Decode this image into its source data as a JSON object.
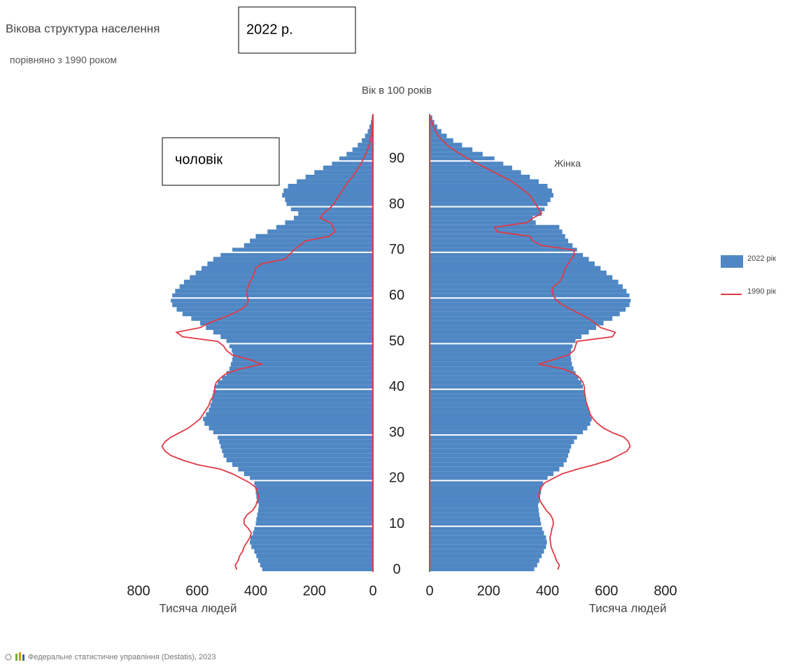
{
  "chart_data": {
    "type": "pyramid",
    "title": "Вікова структура населення",
    "title_box": "2022 р.",
    "subtitle": "порівняно з 1990 роком",
    "age_label": "Вік в 100 років",
    "xlabel": "Тисяча людей",
    "source": "Федеральне статистичне управління (Destatis), 2023",
    "xlim": [
      0,
      800
    ],
    "xticks": [
      0,
      200,
      400,
      600,
      800
    ],
    "ylim": [
      0,
      100
    ],
    "yticks": [
      0,
      10,
      20,
      30,
      40,
      50,
      60,
      70,
      80,
      90
    ],
    "grid": true,
    "panels": [
      {
        "label": "чоловік",
        "side": "left"
      },
      {
        "label": "Жінка",
        "side": "right"
      }
    ],
    "ages": [
      0,
      1,
      2,
      3,
      4,
      5,
      6,
      7,
      8,
      9,
      10,
      11,
      12,
      13,
      14,
      15,
      16,
      17,
      18,
      19,
      20,
      21,
      22,
      23,
      24,
      25,
      26,
      27,
      28,
      29,
      30,
      31,
      32,
      33,
      34,
      35,
      36,
      37,
      38,
      39,
      40,
      41,
      42,
      43,
      44,
      45,
      46,
      47,
      48,
      49,
      50,
      51,
      52,
      53,
      54,
      55,
      56,
      57,
      58,
      59,
      60,
      61,
      62,
      63,
      64,
      65,
      66,
      67,
      68,
      69,
      70,
      71,
      72,
      73,
      74,
      75,
      76,
      77,
      78,
      79,
      80,
      81,
      82,
      83,
      84,
      85,
      86,
      87,
      88,
      89,
      90,
      91,
      92,
      93,
      94,
      95,
      96,
      97,
      98,
      99
    ],
    "series": [
      {
        "name": "2022 рік",
        "color": "#4f87c4",
        "mark": "bar",
        "values": [
          [
            378,
            385,
            392,
            398,
            405,
            415,
            420,
            418,
            410,
            405,
            400,
            398,
            395,
            392,
            390,
            395,
            398,
            400,
            402,
            405,
            420,
            440,
            460,
            480,
            500,
            510,
            515,
            520,
            525,
            530,
            545,
            560,
            575,
            580,
            570,
            560,
            555,
            550,
            548,
            545,
            540,
            530,
            515,
            500,
            490,
            485,
            480,
            478,
            482,
            490,
            500,
            520,
            545,
            570,
            590,
            620,
            650,
            670,
            685,
            690,
            685,
            675,
            660,
            645,
            625,
            605,
            585,
            565,
            545,
            520,
            480,
            440,
            420,
            400,
            360,
            330,
            300,
            270,
            255,
            280,
            295,
            300,
            310,
            305,
            290,
            260,
            230,
            200,
            170,
            140,
            115,
            90,
            70,
            52,
            38,
            27,
            18,
            12,
            7,
            4
          ],
          [
            355,
            365,
            372,
            380,
            388,
            395,
            398,
            395,
            388,
            382,
            378,
            375,
            372,
            370,
            368,
            372,
            375,
            378,
            380,
            385,
            400,
            420,
            440,
            455,
            465,
            470,
            475,
            480,
            490,
            500,
            520,
            535,
            545,
            550,
            545,
            540,
            535,
            530,
            528,
            525,
            520,
            515,
            505,
            495,
            488,
            483,
            480,
            478,
            480,
            485,
            495,
            515,
            540,
            565,
            590,
            620,
            645,
            665,
            678,
            682,
            678,
            668,
            655,
            640,
            620,
            600,
            580,
            560,
            540,
            520,
            500,
            485,
            470,
            460,
            450,
            440,
            360,
            350,
            380,
            390,
            400,
            410,
            420,
            415,
            400,
            370,
            340,
            310,
            280,
            250,
            220,
            180,
            145,
            110,
            80,
            58,
            40,
            26,
            16,
            9
          ]
        ]
      },
      {
        "name": "1990 рік",
        "color": "#e03a46",
        "mark": "line",
        "values": [
          [
            465,
            470,
            460,
            455,
            445,
            440,
            430,
            420,
            415,
            425,
            440,
            440,
            430,
            410,
            400,
            395,
            390,
            395,
            400,
            420,
            450,
            480,
            520,
            600,
            650,
            690,
            710,
            720,
            710,
            690,
            660,
            630,
            610,
            590,
            580,
            570,
            560,
            555,
            545,
            540,
            540,
            535,
            520,
            500,
            450,
            380,
            420,
            480,
            500,
            510,
            530,
            650,
            670,
            590,
            560,
            520,
            480,
            450,
            430,
            425,
            430,
            430,
            425,
            420,
            410,
            405,
            400,
            380,
            300,
            285,
            270,
            250,
            230,
            150,
            130,
            135,
            145,
            180,
            170,
            150,
            135,
            125,
            115,
            105,
            95,
            85,
            70,
            60,
            50,
            40,
            32,
            25,
            18,
            13,
            9,
            6,
            4,
            3,
            2,
            1
          ],
          [
            435,
            440,
            430,
            425,
            418,
            412,
            410,
            408,
            412,
            415,
            420,
            418,
            410,
            395,
            385,
            375,
            370,
            372,
            378,
            390,
            420,
            450,
            500,
            560,
            610,
            640,
            670,
            680,
            675,
            660,
            620,
            590,
            570,
            555,
            545,
            540,
            535,
            530,
            528,
            525,
            525,
            520,
            510,
            490,
            450,
            370,
            420,
            470,
            490,
            495,
            500,
            620,
            630,
            580,
            560,
            540,
            510,
            480,
            450,
            430,
            420,
            415,
            420,
            440,
            450,
            455,
            460,
            470,
            480,
            490,
            490,
            380,
            350,
            340,
            230,
            220,
            330,
            350,
            380,
            370,
            360,
            350,
            340,
            320,
            300,
            280,
            250,
            220,
            190,
            160,
            130,
            105,
            80,
            60,
            43,
            30,
            20,
            13,
            8,
            4
          ]
        ]
      }
    ]
  }
}
